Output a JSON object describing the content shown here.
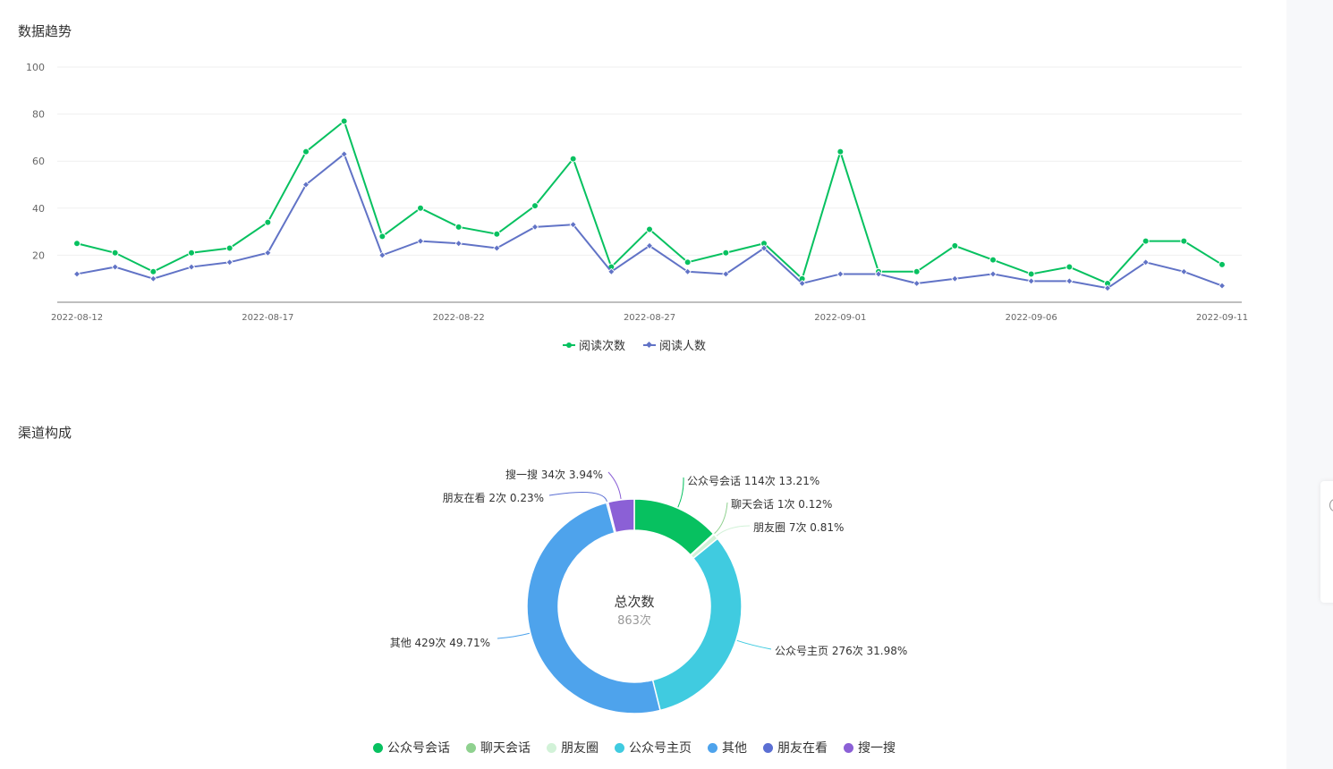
{
  "sections": {
    "trend_title": "数据趋势",
    "channel_title": "渠道构成"
  },
  "chart_data": [
    {
      "type": "line",
      "x_tick_labels": [
        "2022-08-12",
        "2022-08-17",
        "2022-08-22",
        "2022-08-27",
        "2022-09-01",
        "2022-09-06",
        "2022-09-11"
      ],
      "x": [
        "2022-08-12",
        "2022-08-13",
        "2022-08-14",
        "2022-08-15",
        "2022-08-16",
        "2022-08-17",
        "2022-08-18",
        "2022-08-19",
        "2022-08-20",
        "2022-08-21",
        "2022-08-22",
        "2022-08-23",
        "2022-08-24",
        "2022-08-25",
        "2022-08-26",
        "2022-08-27",
        "2022-08-28",
        "2022-08-29",
        "2022-08-30",
        "2022-08-31",
        "2022-09-01",
        "2022-09-02",
        "2022-09-03",
        "2022-09-04",
        "2022-09-05",
        "2022-09-06",
        "2022-09-07",
        "2022-09-08",
        "2022-09-09",
        "2022-09-10",
        "2022-09-11"
      ],
      "series": [
        {
          "name": "阅读次数",
          "color": "#07c160",
          "marker": "circle",
          "values": [
            25,
            21,
            13,
            21,
            23,
            34,
            64,
            77,
            28,
            40,
            32,
            29,
            41,
            61,
            15,
            31,
            17,
            21,
            25,
            10,
            64,
            13,
            13,
            24,
            18,
            12,
            15,
            8,
            26,
            26,
            16
          ]
        },
        {
          "name": "阅读人数",
          "color": "#6173c6",
          "marker": "diamond",
          "values": [
            12,
            15,
            10,
            15,
            17,
            21,
            50,
            63,
            20,
            26,
            25,
            23,
            32,
            33,
            13,
            24,
            13,
            12,
            23,
            8,
            12,
            12,
            8,
            10,
            12,
            9,
            9,
            6,
            17,
            13,
            7
          ]
        }
      ],
      "y_ticks": [
        20,
        40,
        60,
        80,
        100
      ],
      "ylim": [
        0,
        100
      ],
      "grid": true,
      "legend": "bottom-center"
    },
    {
      "type": "pie",
      "style": "donut",
      "center_label": "总次数",
      "center_value": "863次",
      "slices": [
        {
          "name": "公众号会话",
          "label": "公众号会话 114次 13.21%",
          "value": 114,
          "color": "#07c160"
        },
        {
          "name": "聊天会话",
          "label": "聊天会话 1次 0.12%",
          "value": 1,
          "color": "#8fd18f"
        },
        {
          "name": "朋友圈",
          "label": "朋友圈 7次 0.81%",
          "value": 7,
          "color": "#d2f2d8"
        },
        {
          "name": "公众号主页",
          "label": "公众号主页 276次 31.98%",
          "value": 276,
          "color": "#40cbe0"
        },
        {
          "name": "其他",
          "label": "其他 429次 49.71%",
          "value": 429,
          "color": "#4ea3ec"
        },
        {
          "name": "朋友在看",
          "label": "朋友在看 2次 0.23%",
          "value": 2,
          "color": "#5b6fd3"
        },
        {
          "name": "搜一搜",
          "label": "搜一搜 34次 3.94%",
          "value": 34,
          "color": "#8b60d6"
        }
      ],
      "legend": "bottom-center"
    }
  ]
}
